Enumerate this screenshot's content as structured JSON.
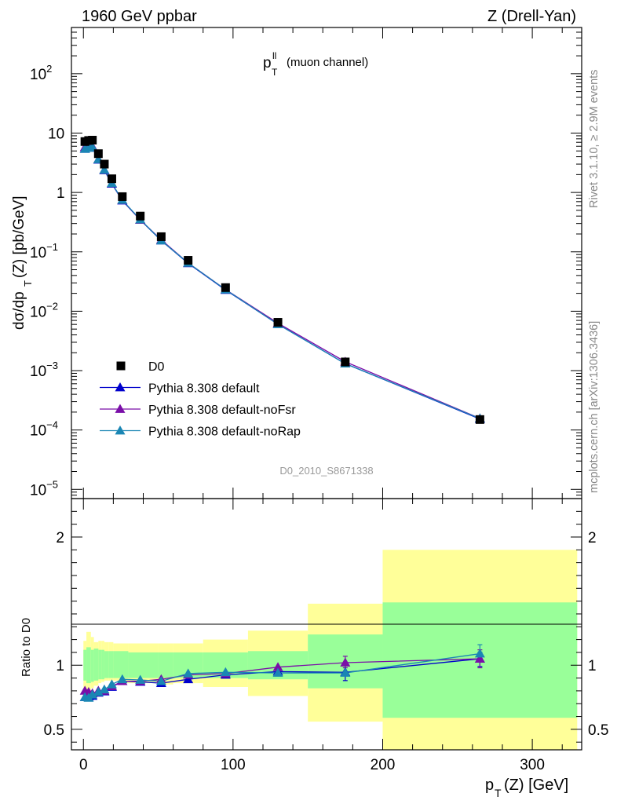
{
  "header": {
    "left": "1960 GeV ppbar",
    "right": "Z (Drell-Yan)"
  },
  "side": {
    "rivet": "Rivet 3.1.10, ≥ 2.9M events",
    "mcplots": "mcplots.cern.ch [arXiv:1306.3436]"
  },
  "watermark": "D0_2010_S8671338",
  "plot_title": {
    "main": "p",
    "sup": "ll",
    "sub": "T",
    "rest": "(muon channel)"
  },
  "ylabel_main": {
    "a": "dσ/dp",
    "sub": "T",
    "b": "(Z) [pb/GeV]"
  },
  "ylabel_ratio": "Ratio to D0",
  "xlabel": {
    "a": "p",
    "sub": "T",
    "b": "(Z) [GeV]"
  },
  "colors": {
    "data": "#000000",
    "default": "#0000cc",
    "noFsr": "#7a0ea8",
    "noRap": "#1a86b4",
    "band_stat": "#99ff99",
    "band_total": "#ffff99"
  },
  "chart_data": [
    {
      "type": "line",
      "panel": "main",
      "yscale": "log",
      "xlim": [
        -8,
        333
      ],
      "ylim": [
        7e-06,
        600
      ],
      "y_major_ticks": [
        {
          "v": 1e-05,
          "b": "10",
          "e": "−5"
        },
        {
          "v": 0.0001,
          "b": "10",
          "e": "−4"
        },
        {
          "v": 0.001,
          "b": "10",
          "e": "−3"
        },
        {
          "v": 0.01,
          "b": "10",
          "e": "−2"
        },
        {
          "v": 0.1,
          "b": "10",
          "e": "−1"
        },
        {
          "v": 1,
          "b": "1",
          "e": ""
        },
        {
          "v": 10,
          "b": "10",
          "e": ""
        },
        {
          "v": 100,
          "b": "10",
          "e": "2"
        }
      ],
      "legend_position": "lower-left",
      "legend": [
        {
          "label": "D0",
          "key": "data",
          "marker": "square"
        },
        {
          "label": "Pythia 8.308 default",
          "key": "default",
          "marker": "triangle"
        },
        {
          "label": "Pythia 8.308 default-noFsr",
          "key": "noFsr",
          "marker": "triangle"
        },
        {
          "label": "Pythia 8.308 default-noRap",
          "key": "noRap",
          "marker": "triangle"
        }
      ],
      "x": [
        1,
        3.5,
        6,
        10,
        14,
        19,
        26,
        38,
        52,
        70,
        95,
        130,
        175,
        265
      ],
      "data": [
        7.2,
        7.5,
        7.6,
        4.5,
        3.0,
        1.7,
        0.85,
        0.4,
        0.18,
        0.072,
        0.025,
        0.0065,
        0.0014,
        0.00015
      ],
      "series": [
        {
          "key": "default",
          "values": [
            5.4,
            5.65,
            5.75,
            3.55,
            2.35,
            1.4,
            0.73,
            0.345,
            0.155,
            0.064,
            0.0228,
            0.00605,
            0.00131,
            0.000153
          ]
        },
        {
          "key": "noFsr",
          "values": [
            5.75,
            5.95,
            5.95,
            3.6,
            2.38,
            1.42,
            0.74,
            0.345,
            0.16,
            0.065,
            0.0232,
            0.0063,
            0.00141,
            0.000157
          ]
        },
        {
          "key": "noRap",
          "values": [
            5.4,
            5.6,
            5.8,
            3.6,
            2.4,
            1.43,
            0.745,
            0.35,
            0.155,
            0.065,
            0.0231,
            0.00603,
            0.00131,
            0.000156
          ]
        }
      ]
    },
    {
      "type": "line",
      "panel": "ratio",
      "xlim": [
        -8,
        333
      ],
      "ylim": [
        0.34,
        2.3
      ],
      "y_ticks": [
        0.5,
        1,
        2
      ],
      "x_ticks": [
        0,
        100,
        200,
        300
      ],
      "bands": [
        {
          "x0": 0,
          "x1": 2,
          "stat": [
            0.88,
            1.12
          ],
          "total": [
            0.82,
            1.19
          ]
        },
        {
          "x0": 2,
          "x1": 5,
          "stat": [
            0.86,
            1.14
          ],
          "total": [
            0.78,
            1.26
          ]
        },
        {
          "x0": 5,
          "x1": 7,
          "stat": [
            0.87,
            1.12
          ],
          "total": [
            0.82,
            1.22
          ]
        },
        {
          "x0": 7,
          "x1": 10,
          "stat": [
            0.88,
            1.13
          ],
          "total": [
            0.84,
            1.18
          ]
        },
        {
          "x0": 10,
          "x1": 12,
          "stat": [
            0.89,
            1.12
          ],
          "total": [
            0.86,
            1.19
          ]
        },
        {
          "x0": 12,
          "x1": 14,
          "stat": [
            0.89,
            1.12
          ],
          "total": [
            0.87,
            1.19
          ]
        },
        {
          "x0": 14,
          "x1": 17,
          "stat": [
            0.9,
            1.11
          ],
          "total": [
            0.88,
            1.18
          ]
        },
        {
          "x0": 17,
          "x1": 20,
          "stat": [
            0.9,
            1.11
          ],
          "total": [
            0.88,
            1.18
          ]
        },
        {
          "x0": 20,
          "x1": 24,
          "stat": [
            0.9,
            1.11
          ],
          "total": [
            0.88,
            1.17
          ]
        },
        {
          "x0": 24,
          "x1": 30,
          "stat": [
            0.9,
            1.11
          ],
          "total": [
            0.86,
            1.17
          ]
        },
        {
          "x0": 30,
          "x1": 50,
          "stat": [
            0.9,
            1.1
          ],
          "total": [
            0.86,
            1.17
          ]
        },
        {
          "x0": 50,
          "x1": 60,
          "stat": [
            0.9,
            1.1
          ],
          "total": [
            0.85,
            1.17
          ]
        },
        {
          "x0": 60,
          "x1": 80,
          "stat": [
            0.9,
            1.1
          ],
          "total": [
            0.86,
            1.17
          ]
        },
        {
          "x0": 80,
          "x1": 110,
          "stat": [
            0.9,
            1.1
          ],
          "total": [
            0.83,
            1.2
          ]
        },
        {
          "x0": 110,
          "x1": 150,
          "stat": [
            0.89,
            1.11
          ],
          "total": [
            0.76,
            1.27
          ]
        },
        {
          "x0": 150,
          "x1": 200,
          "stat": [
            0.82,
            1.24
          ],
          "total": [
            0.56,
            1.48
          ]
        },
        {
          "x0": 200,
          "x1": 330,
          "stat": [
            0.59,
            1.49
          ],
          "total": [
            0.33,
            1.9
          ]
        }
      ],
      "x": [
        1,
        3.5,
        6,
        10,
        14,
        19,
        26,
        38,
        52,
        70,
        95,
        130,
        175,
        265
      ],
      "series": [
        {
          "key": "default",
          "values": [
            0.75,
            0.755,
            0.76,
            0.785,
            0.795,
            0.83,
            0.875,
            0.87,
            0.86,
            0.89,
            0.925,
            0.95,
            0.945,
            1.05
          ]
        },
        {
          "key": "noFsr",
          "values": [
            0.8,
            0.79,
            0.78,
            0.8,
            0.8,
            0.835,
            0.875,
            0.875,
            0.89,
            0.925,
            0.935,
            0.985,
            1.02,
            1.05
          ]
        },
        {
          "key": "noRap",
          "values": [
            0.75,
            0.745,
            0.77,
            0.79,
            0.81,
            0.85,
            0.89,
            0.885,
            0.875,
            0.935,
            0.945,
            0.94,
            0.94,
            1.09
          ]
        }
      ],
      "errors": [
        {
          "key": "default",
          "x": 175,
          "lo": 0.88,
          "hi": 1.0
        },
        {
          "key": "noFsr",
          "x": 175,
          "lo": 0.98,
          "hi": 1.07
        },
        {
          "key": "default",
          "x": 265,
          "lo": 0.99,
          "hi": 1.1
        },
        {
          "key": "noFsr",
          "x": 265,
          "lo": 0.98,
          "hi": 1.12
        },
        {
          "key": "noRap",
          "x": 265,
          "lo": 1.03,
          "hi": 1.16
        }
      ]
    }
  ]
}
